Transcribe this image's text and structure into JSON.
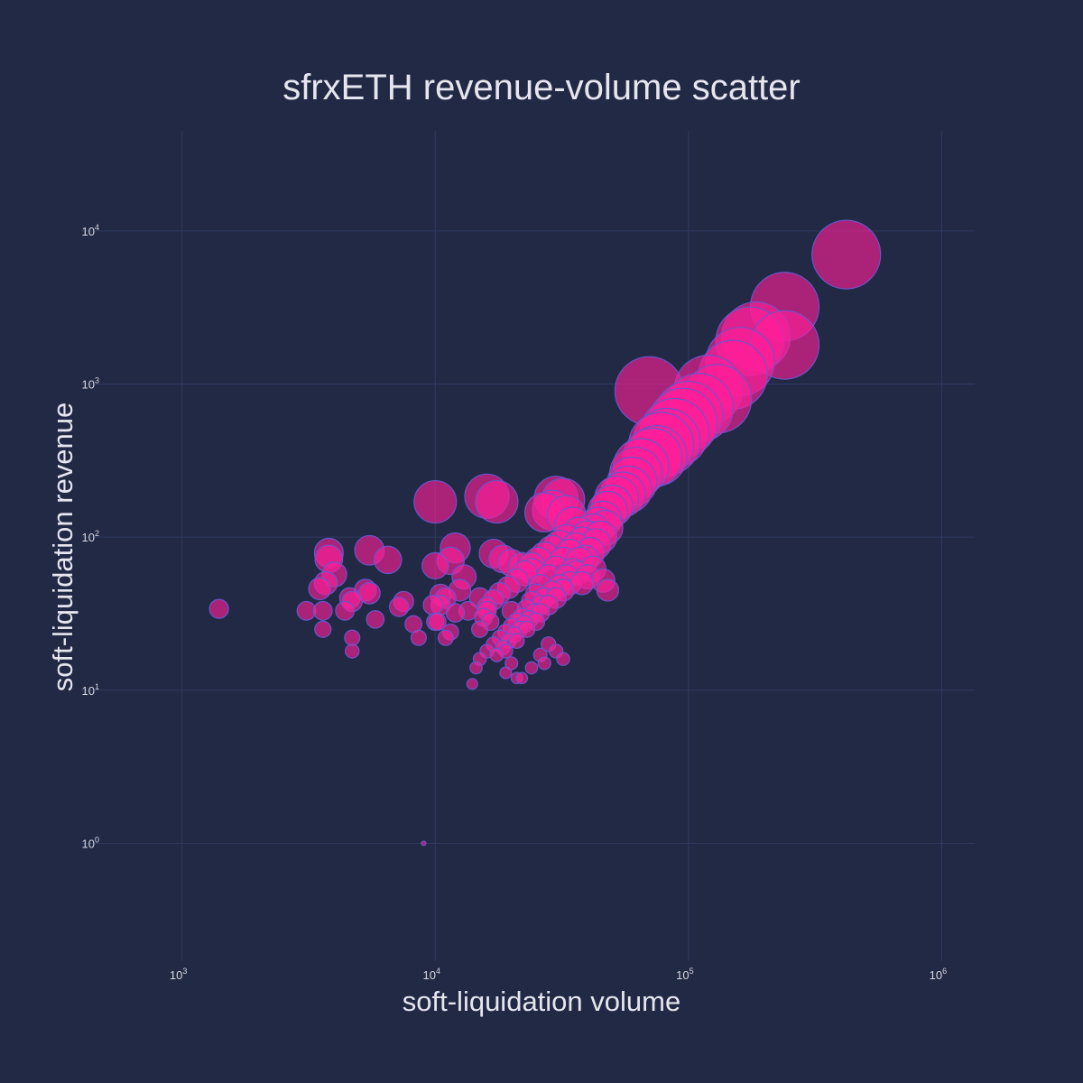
{
  "chart_data": {
    "type": "scatter",
    "title": "sfrxETH revenue-volume scatter",
    "xlabel": "soft-liquidation volume",
    "ylabel": "soft-liquidation revenue",
    "x_scale": "log",
    "y_scale": "log",
    "xlim": [
      400,
      1350000
    ],
    "ylim": [
      0.17,
      45000
    ],
    "x_ticks": [
      {
        "base": "10",
        "exp": "3",
        "value": 1000
      },
      {
        "base": "10",
        "exp": "4",
        "value": 10000
      },
      {
        "base": "10",
        "exp": "5",
        "value": 100000
      },
      {
        "base": "10",
        "exp": "6",
        "value": 1000000
      }
    ],
    "y_ticks": [
      {
        "base": "10",
        "exp": "0",
        "value": 1
      },
      {
        "base": "10",
        "exp": "1",
        "value": 10
      },
      {
        "base": "10",
        "exp": "2",
        "value": 100
      },
      {
        "base": "10",
        "exp": "3",
        "value": 1000
      },
      {
        "base": "10",
        "exp": "4",
        "value": 10000
      }
    ],
    "grid": true,
    "marker_color": "#ff1f9a",
    "marker_outline_color": "#6a55c8",
    "marker_size_encodes": "soft-liquidation revenue",
    "points": [
      [
        420000,
        7000
      ],
      [
        240000,
        3200
      ],
      [
        240000,
        1800
      ],
      [
        185000,
        2050
      ],
      [
        175000,
        1900
      ],
      [
        160000,
        1400
      ],
      [
        150000,
        1150
      ],
      [
        130000,
        800
      ],
      [
        120000,
        920
      ],
      [
        110000,
        700
      ],
      [
        100000,
        620
      ],
      [
        95000,
        560
      ],
      [
        88000,
        480
      ],
      [
        82000,
        420
      ],
      [
        78000,
        400
      ],
      [
        75000,
        340
      ],
      [
        72000,
        330
      ],
      [
        70000,
        900
      ],
      [
        65000,
        290
      ],
      [
        62000,
        260
      ],
      [
        60000,
        230
      ],
      [
        58000,
        205
      ],
      [
        55000,
        190
      ],
      [
        52000,
        180
      ],
      [
        50000,
        160
      ],
      [
        48000,
        148
      ],
      [
        46000,
        130
      ],
      [
        44000,
        120
      ],
      [
        42000,
        110
      ],
      [
        40000,
        100
      ],
      [
        38000,
        92
      ],
      [
        36000,
        85
      ],
      [
        34000,
        78
      ],
      [
        32000,
        70
      ],
      [
        30000,
        62
      ],
      [
        28000,
        55
      ],
      [
        26000,
        48
      ],
      [
        25000,
        42
      ],
      [
        24000,
        38
      ],
      [
        23000,
        34
      ],
      [
        22000,
        30
      ],
      [
        21000,
        28
      ],
      [
        20000,
        26
      ],
      [
        19000,
        24
      ],
      [
        18000,
        22
      ],
      [
        17000,
        20
      ],
      [
        16000,
        18
      ],
      [
        15000,
        16
      ],
      [
        14500,
        14
      ],
      [
        14000,
        11
      ],
      [
        35000,
        60
      ],
      [
        37000,
        70
      ],
      [
        33000,
        55
      ],
      [
        31000,
        48
      ],
      [
        29000,
        44
      ],
      [
        27000,
        40
      ],
      [
        26000,
        36
      ],
      [
        24500,
        32
      ],
      [
        23500,
        29
      ],
      [
        22500,
        27
      ],
      [
        21500,
        25
      ],
      [
        20500,
        23
      ],
      [
        19500,
        21
      ],
      [
        18500,
        19
      ],
      [
        17500,
        17
      ],
      [
        45000,
        100
      ],
      [
        47000,
        115
      ],
      [
        43000,
        90
      ],
      [
        41000,
        80
      ],
      [
        39000,
        72
      ],
      [
        36000,
        58
      ],
      [
        34000,
        50
      ],
      [
        32000,
        45
      ],
      [
        30000,
        40
      ],
      [
        28000,
        36
      ],
      [
        26000,
        32
      ],
      [
        25000,
        28
      ],
      [
        23000,
        25
      ],
      [
        21000,
        21
      ],
      [
        19000,
        18
      ],
      [
        30000,
        180
      ],
      [
        32000,
        175
      ],
      [
        29000,
        150
      ],
      [
        27000,
        145
      ],
      [
        33000,
        140
      ],
      [
        16000,
        185
      ],
      [
        17500,
        170
      ],
      [
        10000,
        170
      ],
      [
        12000,
        85
      ],
      [
        11500,
        70
      ],
      [
        10000,
        65
      ],
      [
        13000,
        55
      ],
      [
        12500,
        45
      ],
      [
        11000,
        40
      ],
      [
        10500,
        36
      ],
      [
        13500,
        33
      ],
      [
        12000,
        32
      ],
      [
        10000,
        28
      ],
      [
        11000,
        22
      ],
      [
        9000,
        1
      ],
      [
        15000,
        40
      ],
      [
        16000,
        35
      ],
      [
        15500,
        30
      ],
      [
        16500,
        28
      ],
      [
        15000,
        25
      ],
      [
        17000,
        78
      ],
      [
        18500,
        72
      ],
      [
        20000,
        68
      ],
      [
        22000,
        65
      ],
      [
        24000,
        60
      ],
      [
        38000,
        50
      ],
      [
        42000,
        62
      ],
      [
        40000,
        55
      ],
      [
        48000,
        45
      ],
      [
        46000,
        52
      ],
      [
        28000,
        20
      ],
      [
        30000,
        18
      ],
      [
        32000,
        16
      ],
      [
        27000,
        15
      ],
      [
        21000,
        12
      ],
      [
        22000,
        12
      ],
      [
        19000,
        13
      ],
      [
        20000,
        15
      ],
      [
        24000,
        14
      ],
      [
        26000,
        17
      ],
      [
        35000,
        120
      ],
      [
        37000,
        105
      ],
      [
        33000,
        95
      ],
      [
        31000,
        88
      ],
      [
        29000,
        82
      ],
      [
        27000,
        75
      ],
      [
        25500,
        70
      ],
      [
        24000,
        65
      ],
      [
        22500,
        58
      ],
      [
        21000,
        52
      ],
      [
        19500,
        47
      ],
      [
        18000,
        43
      ],
      [
        17000,
        39
      ],
      [
        16000,
        33
      ],
      [
        20000,
        33
      ],
      [
        1400,
        34
      ],
      [
        3100,
        33
      ],
      [
        3500,
        46
      ],
      [
        3700,
        50
      ],
      [
        3800,
        72
      ],
      [
        3800,
        79
      ],
      [
        3600,
        33
      ],
      [
        3600,
        25
      ],
      [
        4000,
        57
      ],
      [
        4400,
        33
      ],
      [
        4600,
        40
      ],
      [
        4700,
        38
      ],
      [
        4700,
        22
      ],
      [
        4700,
        18
      ],
      [
        5300,
        45
      ],
      [
        5500,
        82
      ],
      [
        5500,
        43
      ],
      [
        5800,
        29
      ],
      [
        6500,
        71
      ],
      [
        7200,
        35
      ],
      [
        7500,
        38
      ],
      [
        8200,
        27
      ],
      [
        8600,
        22
      ],
      [
        9800,
        36
      ],
      [
        10200,
        28
      ],
      [
        10500,
        42
      ],
      [
        11500,
        24
      ]
    ]
  }
}
